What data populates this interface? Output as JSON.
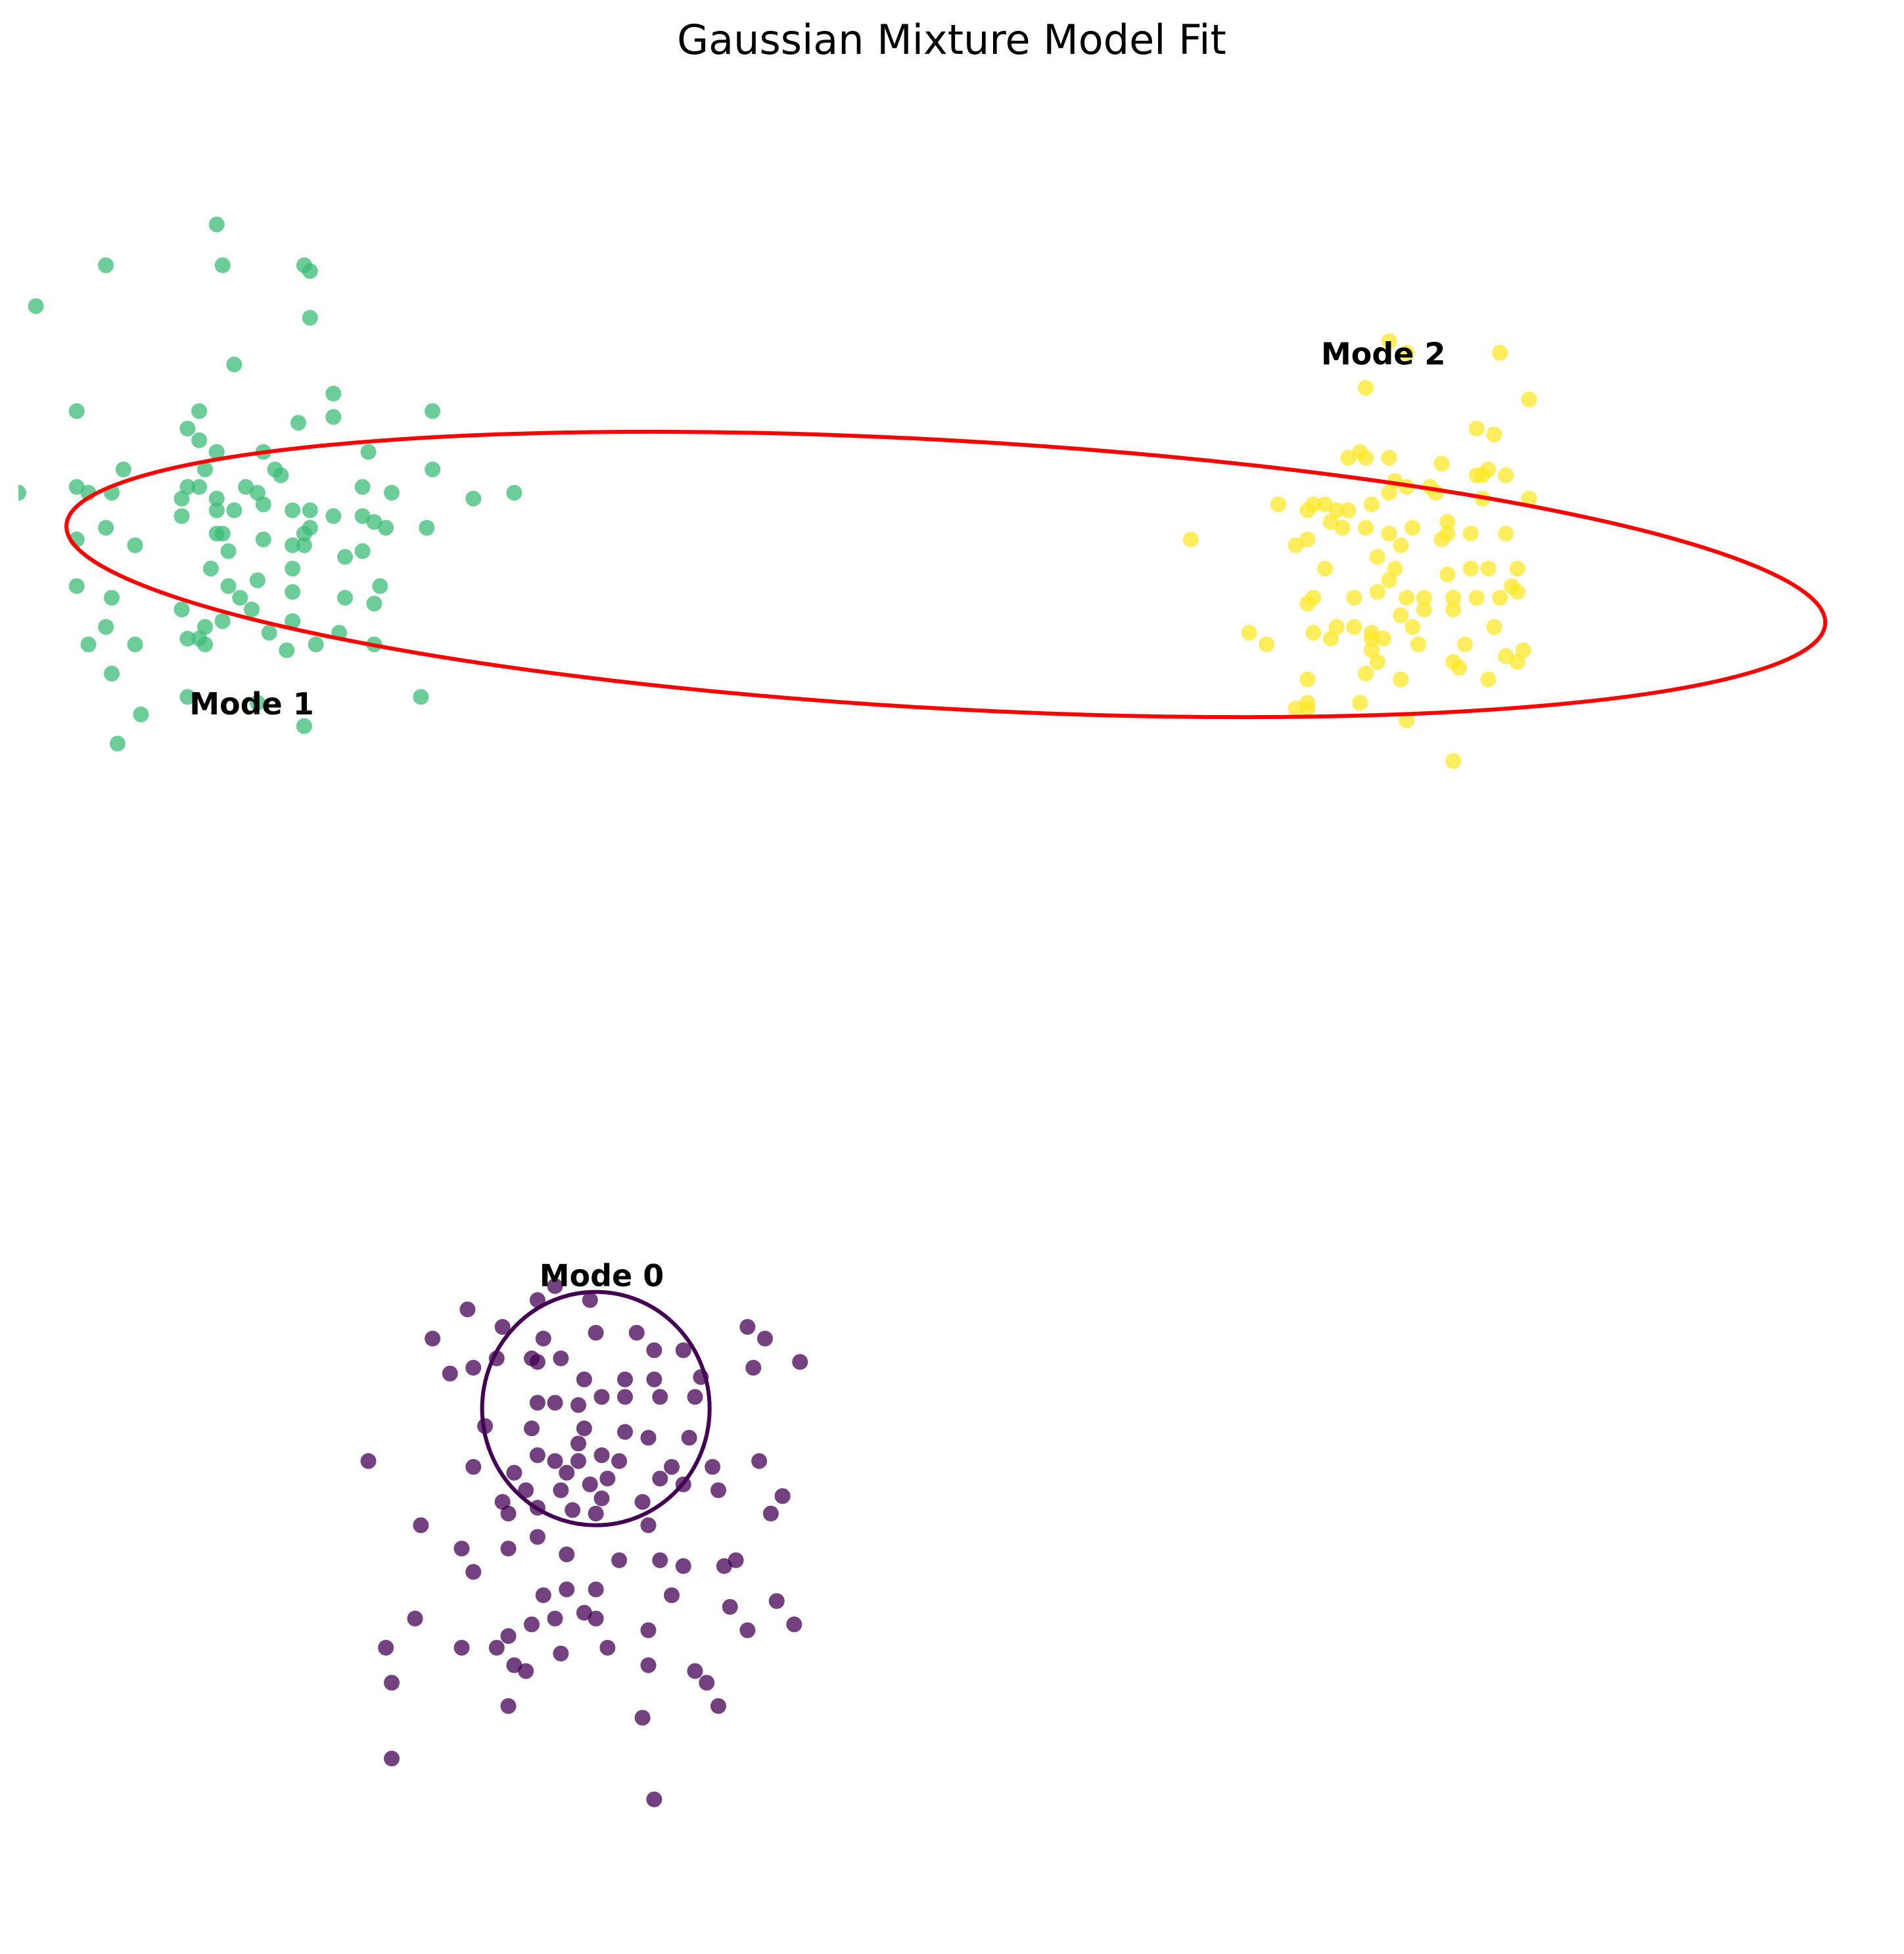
{
  "chart_data": {
    "type": "scatter",
    "title": "Gaussian Mixture Model Fit",
    "xlabel": "",
    "ylabel": "",
    "axes_visible": false,
    "grid": false,
    "xlim": [
      -5.0,
      11.0
    ],
    "ylim": [
      -5.0,
      11.0
    ],
    "series": [
      {
        "name": "Mode 0",
        "color": "#440154",
        "label_at": [
          0.0,
          0.5
        ],
        "points": [
          [
            -0.4,
            0.5
          ],
          [
            -0.55,
            0.38
          ],
          [
            -0.1,
            0.38
          ],
          [
            -1.15,
            0.3
          ],
          [
            -0.85,
            0.15
          ],
          [
            -1.45,
            0.05
          ],
          [
            -0.5,
            0.05
          ],
          [
            -0.05,
            0.1
          ],
          [
            0.3,
            0.1
          ],
          [
            0.45,
            -0.05
          ],
          [
            0.7,
            -0.05
          ],
          [
            1.25,
            0.15
          ],
          [
            1.4,
            0.05
          ],
          [
            1.3,
            -0.2
          ],
          [
            1.7,
            -0.15
          ],
          [
            -0.55,
            -0.15
          ],
          [
            -1.3,
            -0.25
          ],
          [
            -1.1,
            -0.2
          ],
          [
            -0.9,
            -0.12
          ],
          [
            -0.6,
            -0.12
          ],
          [
            -0.35,
            -0.12
          ],
          [
            -0.15,
            -0.3
          ],
          [
            0.2,
            -0.3
          ],
          [
            0.45,
            -0.3
          ],
          [
            0.85,
            -0.28
          ],
          [
            -0.55,
            -0.5
          ],
          [
            -0.4,
            -0.5
          ],
          [
            -0.2,
            -0.52
          ],
          [
            0.0,
            -0.45
          ],
          [
            0.2,
            -0.45
          ],
          [
            0.5,
            -0.45
          ],
          [
            0.8,
            -0.45
          ],
          [
            -1.0,
            -0.7
          ],
          [
            -0.6,
            -0.72
          ],
          [
            -0.15,
            -0.72
          ],
          [
            -0.2,
            -0.85
          ],
          [
            0.2,
            -0.75
          ],
          [
            0.4,
            -0.8
          ],
          [
            0.75,
            -0.8
          ],
          [
            -0.55,
            -0.95
          ],
          [
            -0.4,
            -1.0
          ],
          [
            -0.2,
            -1.0
          ],
          [
            0.0,
            -0.95
          ],
          [
            0.15,
            -1.0
          ],
          [
            0.6,
            -1.05
          ],
          [
            -0.75,
            -1.1
          ],
          [
            -0.3,
            -1.1
          ],
          [
            0.05,
            -1.15
          ],
          [
            0.95,
            -1.05
          ],
          [
            1.35,
            -1.0
          ],
          [
            -2.0,
            -1.0
          ],
          [
            -1.1,
            -1.05
          ],
          [
            -0.65,
            -1.25
          ],
          [
            -0.35,
            -1.25
          ],
          [
            -0.1,
            -1.2
          ],
          [
            0.5,
            -1.15
          ],
          [
            0.7,
            -1.2
          ],
          [
            0.35,
            -1.35
          ],
          [
            1.0,
            -1.25
          ],
          [
            1.55,
            -1.3
          ],
          [
            -0.85,
            -1.35
          ],
          [
            -0.8,
            -1.45
          ],
          [
            -0.55,
            -1.4
          ],
          [
            -0.25,
            -1.42
          ],
          [
            0.0,
            -1.32
          ],
          [
            0.4,
            -1.55
          ],
          [
            1.45,
            -1.45
          ],
          [
            -0.05,
            -1.45
          ],
          [
            0.5,
            -1.85
          ],
          [
            0.7,
            -1.9
          ],
          [
            1.05,
            -1.9
          ],
          [
            1.15,
            -1.85
          ],
          [
            -1.2,
            -1.75
          ],
          [
            -1.1,
            -1.95
          ],
          [
            -0.8,
            -1.75
          ],
          [
            -0.55,
            -1.65
          ],
          [
            -0.3,
            -1.8
          ],
          [
            -0.05,
            -2.1
          ],
          [
            0.15,
            -1.85
          ],
          [
            0.6,
            -2.15
          ],
          [
            1.1,
            -2.25
          ],
          [
            1.5,
            -2.2
          ],
          [
            -1.55,
            -1.55
          ],
          [
            -1.6,
            -2.35
          ],
          [
            -1.85,
            -2.6
          ],
          [
            -1.2,
            -2.6
          ],
          [
            -0.9,
            -2.6
          ],
          [
            -0.75,
            -2.75
          ],
          [
            -0.35,
            -2.65
          ],
          [
            -0.4,
            -2.35
          ],
          [
            0.05,
            -2.6
          ],
          [
            0.4,
            -2.75
          ],
          [
            0.9,
            -2.9
          ],
          [
            0.4,
            -2.45
          ],
          [
            -0.6,
            -2.4
          ],
          [
            -0.3,
            -2.1
          ],
          [
            -0.65,
            -2.8
          ],
          [
            -0.8,
            -2.5
          ],
          [
            -0.5,
            -2.15
          ],
          [
            -0.05,
            -2.35
          ],
          [
            -1.8,
            -2.9
          ],
          [
            0.8,
            -2.8
          ],
          [
            1.25,
            -2.45
          ],
          [
            1.65,
            -2.4
          ],
          [
            0.35,
            -3.2
          ],
          [
            -0.8,
            -3.1
          ],
          [
            1.0,
            -3.1
          ],
          [
            -1.8,
            -3.55
          ],
          [
            0.45,
            -3.9
          ],
          [
            -0.15,
            -2.3
          ]
        ],
        "ellipse": {
          "center": [
            -0.05,
            -0.55
          ],
          "width": 1.95,
          "height": 2.0,
          "angle": 0
        }
      },
      {
        "name": "Mode 1",
        "color": "#3cbc75",
        "label_at": [
          -3.0,
          5.4
        ],
        "points": [
          [
            -3.3,
            9.6
          ],
          [
            -3.25,
            9.25
          ],
          [
            -4.25,
            9.25
          ],
          [
            -2.55,
            9.25
          ],
          [
            -2.5,
            9.2
          ],
          [
            -4.85,
            8.9
          ],
          [
            -2.5,
            8.8
          ],
          [
            -3.15,
            8.4
          ],
          [
            -2.3,
            8.15
          ],
          [
            -4.5,
            8.0
          ],
          [
            -3.45,
            8.0
          ],
          [
            -3.55,
            7.85
          ],
          [
            -2.3,
            7.95
          ],
          [
            -2.6,
            7.9
          ],
          [
            -1.45,
            8.0
          ],
          [
            -3.45,
            7.75
          ],
          [
            -3.3,
            7.65
          ],
          [
            -2.9,
            7.65
          ],
          [
            -2.0,
            7.65
          ],
          [
            -3.4,
            7.5
          ],
          [
            -4.1,
            7.5
          ],
          [
            -2.8,
            7.5
          ],
          [
            -2.75,
            7.45
          ],
          [
            -1.45,
            7.5
          ],
          [
            -4.5,
            7.35
          ],
          [
            -4.4,
            7.3
          ],
          [
            -3.55,
            7.35
          ],
          [
            -3.05,
            7.35
          ],
          [
            -4.2,
            7.3
          ],
          [
            -2.05,
            7.35
          ],
          [
            -5.0,
            7.3
          ],
          [
            -3.45,
            7.35
          ],
          [
            -3.3,
            7.25
          ],
          [
            -3.6,
            7.25
          ],
          [
            -2.95,
            7.3
          ],
          [
            -1.8,
            7.3
          ],
          [
            -1.1,
            7.25
          ],
          [
            -0.75,
            7.3
          ],
          [
            -3.15,
            7.15
          ],
          [
            -2.9,
            7.2
          ],
          [
            -3.3,
            7.15
          ],
          [
            -2.65,
            7.15
          ],
          [
            -2.5,
            7.15
          ],
          [
            -3.6,
            7.1
          ],
          [
            -2.3,
            7.1
          ],
          [
            -2.05,
            7.1
          ],
          [
            -1.95,
            7.05
          ],
          [
            -1.5,
            7.0
          ],
          [
            -4.25,
            7.0
          ],
          [
            -2.5,
            7.0
          ],
          [
            -1.85,
            7.0
          ],
          [
            -3.25,
            6.95
          ],
          [
            -3.3,
            6.95
          ],
          [
            -2.55,
            6.95
          ],
          [
            -4.5,
            6.9
          ],
          [
            -2.9,
            6.9
          ],
          [
            -2.65,
            6.85
          ],
          [
            -2.55,
            6.85
          ],
          [
            -3.2,
            6.8
          ],
          [
            -2.2,
            6.75
          ],
          [
            -2.05,
            6.8
          ],
          [
            -3.35,
            6.65
          ],
          [
            -2.65,
            6.65
          ],
          [
            -2.95,
            6.55
          ],
          [
            -3.2,
            6.5
          ],
          [
            -3.1,
            6.4
          ],
          [
            -4.5,
            6.5
          ],
          [
            -4.2,
            6.4
          ],
          [
            -2.65,
            6.45
          ],
          [
            -1.9,
            6.5
          ],
          [
            -2.2,
            6.4
          ],
          [
            -3.6,
            6.3
          ],
          [
            -1.95,
            6.35
          ],
          [
            -3.25,
            6.2
          ],
          [
            -2.65,
            6.2
          ],
          [
            -4.25,
            6.15
          ],
          [
            -3.4,
            6.15
          ],
          [
            -2.85,
            6.1
          ],
          [
            -2.25,
            6.1
          ],
          [
            -4.4,
            6.0
          ],
          [
            -3.55,
            6.05
          ],
          [
            -3.45,
            6.05
          ],
          [
            -4.0,
            6.0
          ],
          [
            -3.4,
            6.0
          ],
          [
            -2.45,
            6.0
          ],
          [
            -1.95,
            6.0
          ],
          [
            -4.2,
            5.75
          ],
          [
            -3.55,
            5.55
          ],
          [
            -2.95,
            5.5
          ],
          [
            -1.55,
            5.55
          ],
          [
            -3.95,
            5.4
          ],
          [
            -2.55,
            5.3
          ],
          [
            -4.15,
            5.15
          ],
          [
            -2.7,
            5.95
          ],
          [
            -4.0,
            6.85
          ],
          [
            -3.0,
            6.3
          ]
        ]
      },
      {
        "name": "Mode 2",
        "color": "#fde725",
        "label_at": [
          6.7,
          8.4
        ],
        "points": [
          [
            6.75,
            8.6
          ],
          [
            6.9,
            8.5
          ],
          [
            7.7,
            8.5
          ],
          [
            6.55,
            8.2
          ],
          [
            7.95,
            8.1
          ],
          [
            7.5,
            7.85
          ],
          [
            7.65,
            7.8
          ],
          [
            6.5,
            7.65
          ],
          [
            6.55,
            7.6
          ],
          [
            6.75,
            7.6
          ],
          [
            7.2,
            7.55
          ],
          [
            7.55,
            7.45
          ],
          [
            7.6,
            7.5
          ],
          [
            7.5,
            7.45
          ],
          [
            7.75,
            7.45
          ],
          [
            6.8,
            7.4
          ],
          [
            6.9,
            7.35
          ],
          [
            6.75,
            7.3
          ],
          [
            7.15,
            7.3
          ],
          [
            7.55,
            7.25
          ],
          [
            7.95,
            7.25
          ],
          [
            6.2,
            7.2
          ],
          [
            5.8,
            7.2
          ],
          [
            6.1,
            7.2
          ],
          [
            6.3,
            7.15
          ],
          [
            6.4,
            7.15
          ],
          [
            6.6,
            7.2
          ],
          [
            6.05,
            7.15
          ],
          [
            6.25,
            7.05
          ],
          [
            6.55,
            7.0
          ],
          [
            6.75,
            6.95
          ],
          [
            6.95,
            7.0
          ],
          [
            7.25,
            7.05
          ],
          [
            6.05,
            6.9
          ],
          [
            6.35,
            7.0
          ],
          [
            6.85,
            6.85
          ],
          [
            7.25,
            6.95
          ],
          [
            7.45,
            6.95
          ],
          [
            7.75,
            6.95
          ],
          [
            7.2,
            6.9
          ],
          [
            5.05,
            6.9
          ],
          [
            5.95,
            6.85
          ],
          [
            6.65,
            6.75
          ],
          [
            6.8,
            6.65
          ],
          [
            6.75,
            6.55
          ],
          [
            7.45,
            6.65
          ],
          [
            7.25,
            6.6
          ],
          [
            7.6,
            6.65
          ],
          [
            7.85,
            6.65
          ],
          [
            6.2,
            6.65
          ],
          [
            6.1,
            6.4
          ],
          [
            6.05,
            6.35
          ],
          [
            6.45,
            6.4
          ],
          [
            6.65,
            6.45
          ],
          [
            6.9,
            6.4
          ],
          [
            7.05,
            6.4
          ],
          [
            7.3,
            6.4
          ],
          [
            7.5,
            6.4
          ],
          [
            7.7,
            6.4
          ],
          [
            7.8,
            6.5
          ],
          [
            7.85,
            6.45
          ],
          [
            6.85,
            6.25
          ],
          [
            7.05,
            6.3
          ],
          [
            7.3,
            6.3
          ],
          [
            6.3,
            6.15
          ],
          [
            6.45,
            6.15
          ],
          [
            6.6,
            6.1
          ],
          [
            6.95,
            6.15
          ],
          [
            7.65,
            6.15
          ],
          [
            5.55,
            6.1
          ],
          [
            5.7,
            6.0
          ],
          [
            6.1,
            6.1
          ],
          [
            6.25,
            6.05
          ],
          [
            6.6,
            6.05
          ],
          [
            6.7,
            6.05
          ],
          [
            7.0,
            6.0
          ],
          [
            7.4,
            6.0
          ],
          [
            7.75,
            5.9
          ],
          [
            7.85,
            5.85
          ],
          [
            7.9,
            5.95
          ],
          [
            7.3,
            5.85
          ],
          [
            7.35,
            5.8
          ],
          [
            6.65,
            5.85
          ],
          [
            6.6,
            5.95
          ],
          [
            6.55,
            5.75
          ],
          [
            6.85,
            5.7
          ],
          [
            7.6,
            5.7
          ],
          [
            6.05,
            5.7
          ],
          [
            6.05,
            5.5
          ],
          [
            6.05,
            5.45
          ],
          [
            5.95,
            5.45
          ],
          [
            6.5,
            5.5
          ],
          [
            6.9,
            5.35
          ],
          [
            7.3,
            5.0
          ],
          [
            6.4,
            7.6
          ],
          [
            7.1,
            7.35
          ]
        ]
      }
    ],
    "extra_ellipses": [
      {
        "color": "#ff0000",
        "center": [
          2.95,
          6.6
        ],
        "width": 15.1,
        "height": 2.3,
        "angle": -3.2
      }
    ]
  }
}
